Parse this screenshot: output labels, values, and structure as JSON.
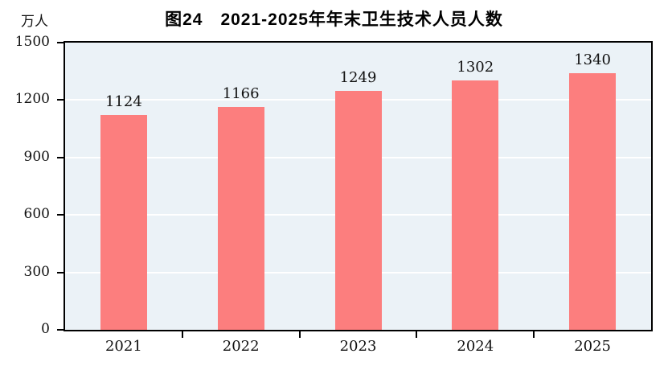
{
  "figure": {
    "title": "图24　2021-2025年年末卫生技术人员人数",
    "y_axis_unit": "万人"
  },
  "chart_data": {
    "type": "bar",
    "title": "图24　2021-2025年年末卫生技术人员人数",
    "categories": [
      "2021",
      "2022",
      "2023",
      "2024",
      "2025"
    ],
    "values": [
      1124,
      1166,
      1249,
      1302,
      1340
    ],
    "xlabel": "",
    "ylabel": "万人",
    "ylim": [
      0,
      1500
    ],
    "yticks": [
      0,
      300,
      600,
      900,
      1200,
      1500
    ],
    "grid": true,
    "legend_position": "none",
    "bar_color": "#FC7E7E",
    "plot_background": "#EBF2F7",
    "gridline_color": "#FFFFFF",
    "axis_color": "#000000"
  }
}
